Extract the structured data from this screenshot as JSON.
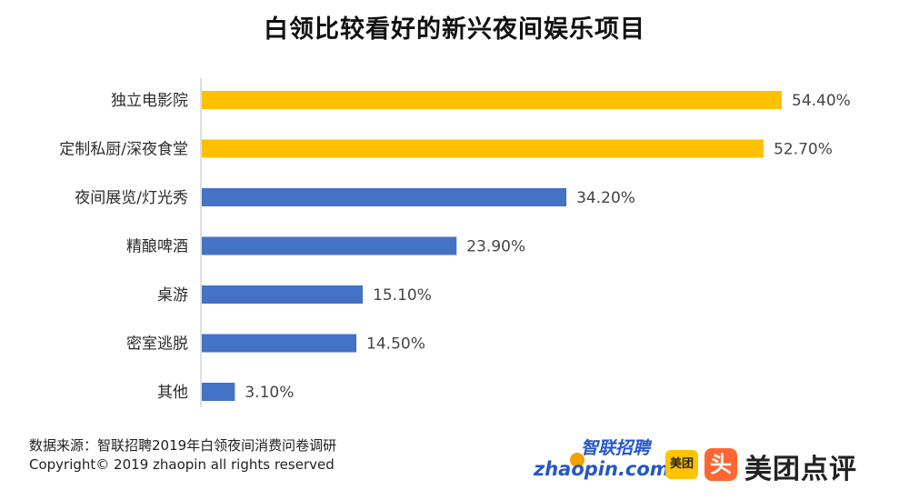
{
  "title": "白领比较看好的新兴夜间娱乐项目",
  "chart_data": {
    "type": "bar",
    "orientation": "horizontal",
    "title": "白领比较看好的新兴夜间娱乐项目",
    "categories": [
      "独立电影院",
      "定制私厨/深夜食堂",
      "夜间展览/灯光秀",
      "精酿啤酒",
      "桌游",
      "密室逃脱",
      "其他"
    ],
    "values": [
      54.4,
      52.7,
      34.2,
      23.9,
      15.1,
      14.5,
      3.1
    ],
    "value_labels": [
      "54.40%",
      "52.70%",
      "34.20%",
      "23.90%",
      "15.10%",
      "14.50%",
      "3.10%"
    ],
    "bar_colors": [
      "#ffc000",
      "#ffc000",
      "#4472c4",
      "#4472c4",
      "#4472c4",
      "#4472c4",
      "#4472c4"
    ],
    "xlim": [
      0,
      60
    ],
    "grid": false,
    "legend": "none"
  },
  "source": {
    "line1": "数据来源：智联招聘2019年白领夜间消费问卷调研",
    "line2": "Copyright© 2019 zhaopin all rights reserved"
  },
  "logos": {
    "zhaopin_cn": "智联招聘",
    "zhaopin_en": "zhaopin.com",
    "meituan": "美团",
    "dianping_icon": "头",
    "meituan_dianping": "美团点评"
  }
}
